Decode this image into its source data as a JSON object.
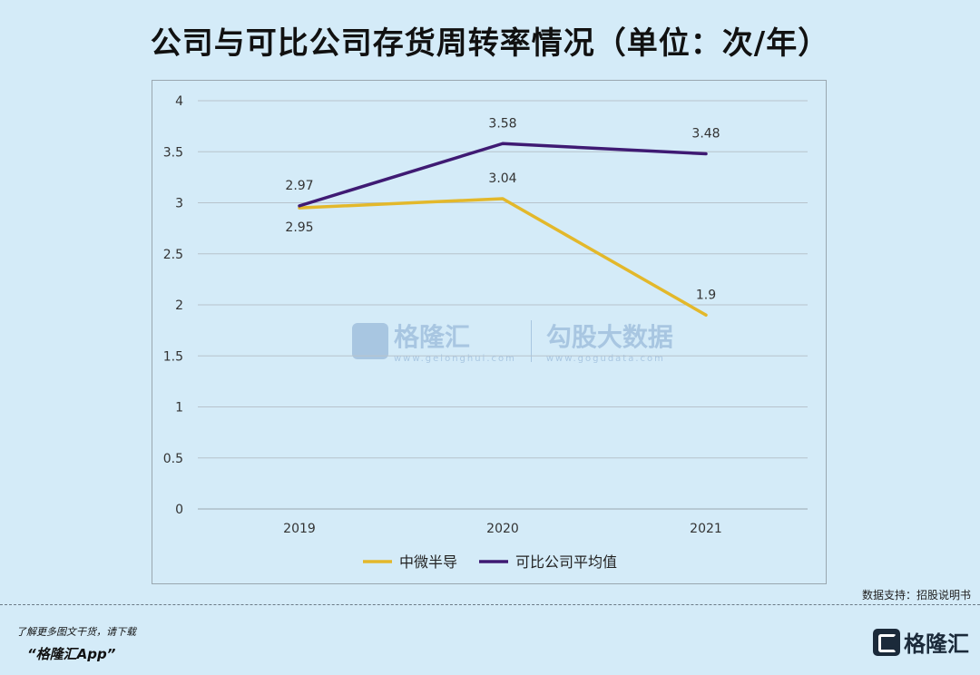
{
  "header": {
    "title": "公司与可比公司存货周转率情况（单位：次/年）"
  },
  "source": "数据支持：招股说明书",
  "footer": {
    "line1": "了解更多图文干货，请下载",
    "line2": "“格隆汇App”"
  },
  "logo": {
    "text": "格隆汇"
  },
  "watermark": {
    "brand": "格隆汇",
    "brand_sub": "www.gelonghui.com",
    "right": "勾股大数据",
    "right_sub": "www.gogudata.com"
  },
  "chart_data": {
    "type": "line",
    "categories": [
      "2019",
      "2020",
      "2021"
    ],
    "ylim": [
      0,
      4
    ],
    "yticks": [
      "0",
      "0.5",
      "1",
      "1.5",
      "2",
      "2.5",
      "3",
      "3.5",
      "4"
    ],
    "grid": true,
    "legend_position": "bottom",
    "series": [
      {
        "name": "中微半导",
        "values": [
          2.95,
          3.04,
          1.9
        ],
        "labels": [
          "2.95",
          "3.04",
          "1.9"
        ],
        "color": "#e3b82b"
      },
      {
        "name": "可比公司平均值",
        "values": [
          2.97,
          3.58,
          3.48
        ],
        "labels": [
          "2.97",
          "3.58",
          "3.48"
        ],
        "color": "#3f1a73"
      }
    ]
  }
}
